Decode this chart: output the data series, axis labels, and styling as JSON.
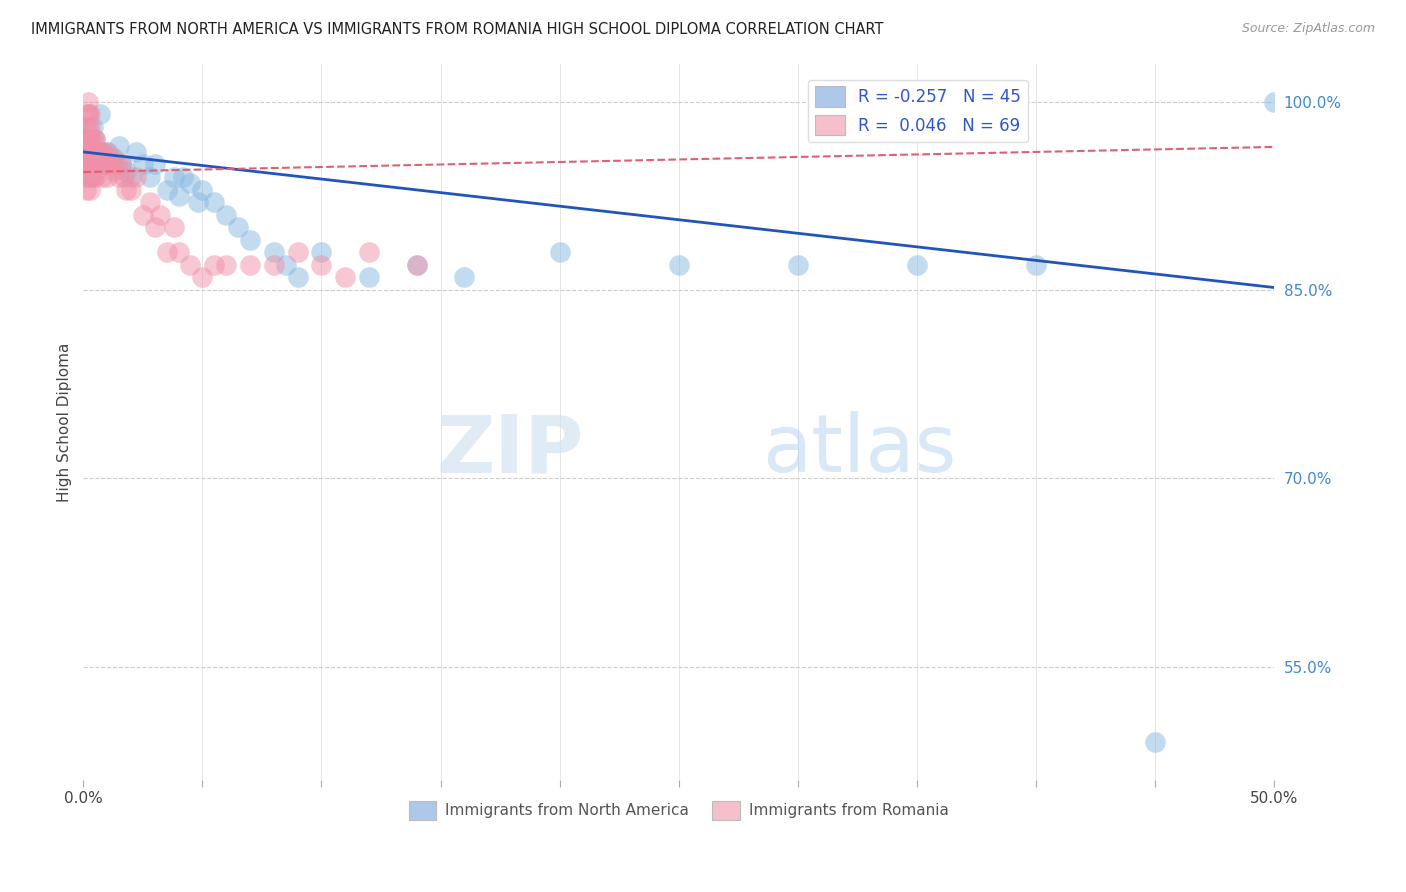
{
  "title": "IMMIGRANTS FROM NORTH AMERICA VS IMMIGRANTS FROM ROMANIA HIGH SCHOOL DIPLOMA CORRELATION CHART",
  "source": "Source: ZipAtlas.com",
  "ylabel": "High School Diploma",
  "right_ytick_labels": [
    "100.0%",
    "85.0%",
    "70.0%",
    "55.0%"
  ],
  "right_ytick_values": [
    1.0,
    0.85,
    0.7,
    0.55
  ],
  "legend_blue_label": "R = -0.257   N = 45",
  "legend_pink_label": "R =  0.046   N = 69",
  "legend_blue_color": "#adc8e8",
  "legend_pink_color": "#f5bfcc",
  "scatter_blue_color": "#88b8e0",
  "scatter_pink_color": "#f090a8",
  "trendline_blue_color": "#2255bb",
  "trendline_pink_color": "#e06070",
  "watermark_zip": "ZIP",
  "watermark_atlas": "atlas",
  "blue_x": [
    0.002,
    0.003,
    0.003,
    0.004,
    0.005,
    0.006,
    0.007,
    0.008,
    0.009,
    0.01,
    0.012,
    0.013,
    0.015,
    0.016,
    0.018,
    0.02,
    0.022,
    0.025,
    0.028,
    0.03,
    0.035,
    0.038,
    0.04,
    0.042,
    0.045,
    0.048,
    0.05,
    0.055,
    0.06,
    0.065,
    0.07,
    0.08,
    0.085,
    0.09,
    0.1,
    0.12,
    0.14,
    0.16,
    0.2,
    0.25,
    0.3,
    0.35,
    0.4,
    0.45,
    0.5
  ],
  "blue_y": [
    0.96,
    0.95,
    0.94,
    0.98,
    0.97,
    0.96,
    0.99,
    0.96,
    0.95,
    0.96,
    0.95,
    0.955,
    0.965,
    0.95,
    0.945,
    0.94,
    0.96,
    0.95,
    0.94,
    0.95,
    0.93,
    0.94,
    0.925,
    0.94,
    0.935,
    0.92,
    0.93,
    0.92,
    0.91,
    0.9,
    0.89,
    0.88,
    0.87,
    0.86,
    0.88,
    0.86,
    0.87,
    0.86,
    0.88,
    0.87,
    0.87,
    0.87,
    0.87,
    0.49,
    1.0
  ],
  "pink_x": [
    0.001,
    0.001,
    0.001,
    0.001,
    0.001,
    0.001,
    0.001,
    0.001,
    0.001,
    0.002,
    0.002,
    0.002,
    0.002,
    0.002,
    0.002,
    0.002,
    0.002,
    0.002,
    0.003,
    0.003,
    0.003,
    0.003,
    0.003,
    0.003,
    0.003,
    0.004,
    0.004,
    0.004,
    0.004,
    0.005,
    0.005,
    0.005,
    0.006,
    0.006,
    0.007,
    0.007,
    0.008,
    0.008,
    0.009,
    0.01,
    0.01,
    0.011,
    0.012,
    0.013,
    0.014,
    0.015,
    0.016,
    0.017,
    0.018,
    0.02,
    0.022,
    0.025,
    0.028,
    0.03,
    0.032,
    0.035,
    0.038,
    0.04,
    0.045,
    0.05,
    0.055,
    0.06,
    0.07,
    0.08,
    0.09,
    0.1,
    0.11,
    0.12,
    0.14
  ],
  "pink_y": [
    0.98,
    0.97,
    0.96,
    0.95,
    0.94,
    0.93,
    0.97,
    0.96,
    0.95,
    1.0,
    0.99,
    0.98,
    0.97,
    0.96,
    0.95,
    0.99,
    0.97,
    0.96,
    0.99,
    0.98,
    0.97,
    0.96,
    0.95,
    0.94,
    0.93,
    0.97,
    0.96,
    0.95,
    0.94,
    0.97,
    0.95,
    0.94,
    0.96,
    0.95,
    0.96,
    0.95,
    0.96,
    0.94,
    0.95,
    0.96,
    0.94,
    0.95,
    0.955,
    0.945,
    0.95,
    0.94,
    0.95,
    0.94,
    0.93,
    0.93,
    0.94,
    0.91,
    0.92,
    0.9,
    0.91,
    0.88,
    0.9,
    0.88,
    0.87,
    0.86,
    0.87,
    0.87,
    0.87,
    0.87,
    0.88,
    0.87,
    0.86,
    0.88,
    0.87
  ],
  "trendline_blue_x0": 0.0,
  "trendline_blue_y0": 0.96,
  "trendline_blue_x1": 0.5,
  "trendline_blue_y1": 0.852,
  "trendline_pink_x0": 0.0,
  "trendline_pink_y0": 0.944,
  "trendline_pink_x1": 0.5,
  "trendline_pink_y1": 0.964,
  "xmin": 0.0,
  "xmax": 0.5,
  "ymin": 0.46,
  "ymax": 1.03,
  "xtick_positions": [
    0.0,
    0.05,
    0.1,
    0.15,
    0.2,
    0.25,
    0.3,
    0.35,
    0.4,
    0.45,
    0.5
  ],
  "bottom_legend_label1": "Immigrants from North America",
  "bottom_legend_label2": "Immigrants from Romania"
}
